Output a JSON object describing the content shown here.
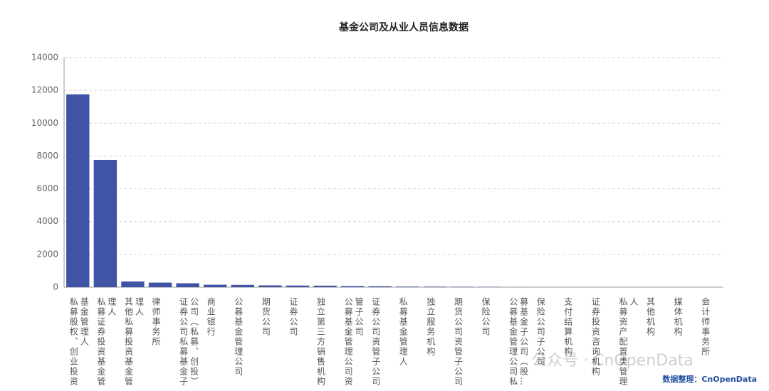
{
  "chart_data": {
    "type": "bar",
    "title": "基金公司及从业人员信息数据",
    "categories": [
      "私募股权、创业投资基金管理人",
      "私募证券投资基金管理人",
      "其他私募投资基金管理人",
      "律师事务所",
      "证券公司私募基金子公司（私募、创投）",
      "商业银行",
      "公募基金管理公司",
      "期货公司",
      "证券公司",
      "独立第三方销售机构",
      "公募基金管理公司资管子公司",
      "证券公司资管子公司",
      "私募基金管理人",
      "独立服务机构",
      "期货公司资管子公司",
      "保险公司",
      "公募基金管理公司私募基金子公司（股…",
      "保险公司子公司",
      "支付结算机构",
      "证券投资咨询机构",
      "私募资产配置类管理人",
      "其他机构",
      "媒体机构",
      "会计师事务所"
    ],
    "values": [
      11760,
      7760,
      350,
      280,
      240,
      150,
      140,
      110,
      100,
      95,
      70,
      60,
      40,
      35,
      30,
      25,
      10,
      5,
      3,
      3,
      2,
      1,
      1,
      1
    ],
    "color": "#3f54a5",
    "ylim": [
      0,
      14000
    ],
    "yticks": [
      0,
      2000,
      4000,
      6000,
      8000,
      10000,
      12000,
      14000
    ],
    "grid": true,
    "source": "数据整理：CnOpenData",
    "watermark": "公众号 · CnOpenData"
  }
}
